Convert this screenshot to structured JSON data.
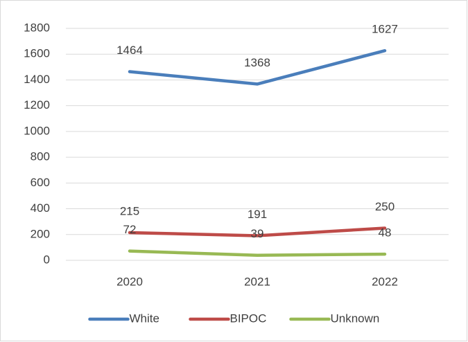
{
  "chart_data": {
    "type": "line",
    "categories": [
      "2020",
      "2021",
      "2022"
    ],
    "series": [
      {
        "name": "White",
        "color": "#4a7ebb",
        "values": [
          1464,
          1368,
          1627
        ]
      },
      {
        "name": "BIPOC",
        "color": "#be4b48",
        "values": [
          215,
          191,
          250
        ]
      },
      {
        "name": "Unknown",
        "color": "#98b954",
        "values": [
          72,
          39,
          48
        ]
      }
    ],
    "ylim": [
      0,
      1800
    ],
    "yticks": [
      0,
      200,
      400,
      600,
      800,
      1000,
      1200,
      1400,
      1600,
      1800
    ],
    "grid": true,
    "legend": "bottom"
  }
}
